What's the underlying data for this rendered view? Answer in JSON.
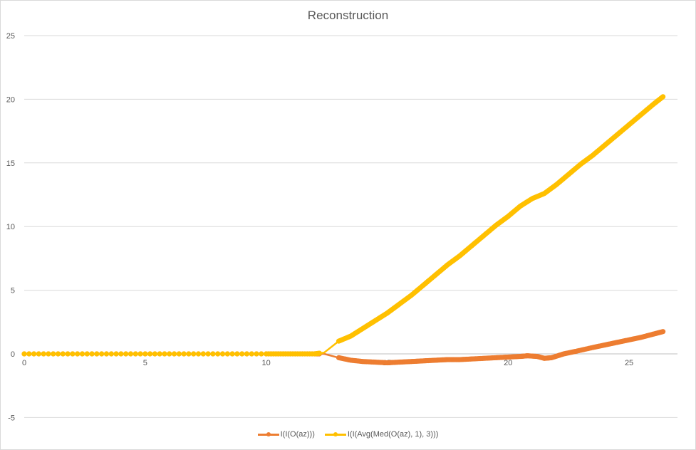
{
  "chart_data": {
    "type": "line",
    "title": "Reconstruction",
    "xlabel": "",
    "ylabel": "",
    "xlim": [
      0,
      27
    ],
    "ylim": [
      -5,
      25
    ],
    "x_ticks": [
      0,
      5,
      10,
      15,
      20,
      25
    ],
    "y_ticks": [
      -5,
      0,
      5,
      10,
      15,
      20,
      25
    ],
    "grid": "horizontal",
    "legend_position": "bottom",
    "series": [
      {
        "name": "I(I(O(az)))",
        "color": "#ED7D31",
        "x": [
          0,
          2,
          4,
          6,
          8,
          10,
          11,
          12,
          12.4,
          13,
          13.5,
          14,
          14.5,
          15,
          15.5,
          16,
          16.5,
          17,
          17.5,
          18,
          18.5,
          19,
          19.5,
          20,
          20.5,
          20.8,
          21.2,
          21.5,
          21.8,
          22.3,
          22.8,
          23.5,
          24,
          24.5,
          25,
          25.5,
          26,
          26.4
        ],
        "y": [
          0,
          0,
          0,
          0,
          0,
          0,
          0,
          0,
          0,
          -0.3,
          -0.5,
          -0.6,
          -0.65,
          -0.7,
          -0.65,
          -0.6,
          -0.55,
          -0.5,
          -0.45,
          -0.45,
          -0.4,
          -0.35,
          -0.3,
          -0.25,
          -0.2,
          -0.15,
          -0.2,
          -0.35,
          -0.3,
          0,
          0.2,
          0.5,
          0.7,
          0.9,
          1.1,
          1.3,
          1.55,
          1.75
        ]
      },
      {
        "name": "I(I(Avg(Med(O(az), 1), 3)))",
        "color": "#FFC000",
        "x": [
          0,
          2,
          4,
          6,
          8,
          10,
          11,
          12,
          12.4,
          13,
          13.5,
          14,
          14.5,
          15,
          15.5,
          16,
          16.5,
          17,
          17.5,
          18,
          18.5,
          19,
          19.5,
          20,
          20.5,
          21,
          21.5,
          22,
          22.5,
          23,
          23.5,
          24,
          24.5,
          25,
          25.5,
          26,
          26.4
        ],
        "y": [
          0,
          0,
          0,
          0,
          0,
          0,
          0,
          0,
          0.1,
          1.0,
          1.4,
          2.0,
          2.6,
          3.2,
          3.9,
          4.6,
          5.4,
          6.2,
          7.0,
          7.7,
          8.5,
          9.3,
          10.1,
          10.8,
          11.6,
          12.2,
          12.6,
          13.3,
          14.1,
          14.9,
          15.6,
          16.4,
          17.2,
          18.0,
          18.8,
          19.6,
          20.2
        ]
      }
    ]
  }
}
